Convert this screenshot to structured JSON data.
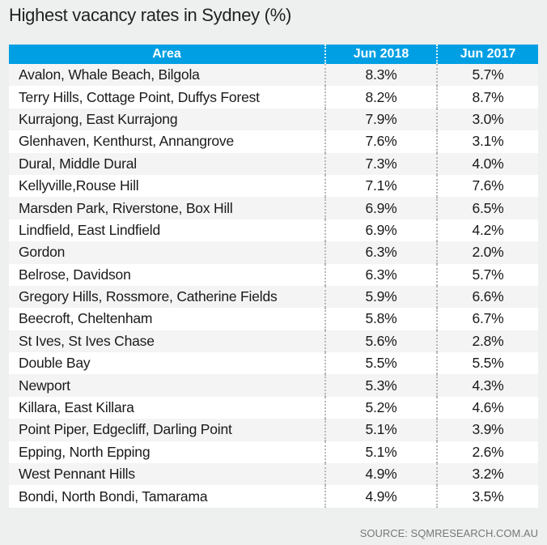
{
  "chart_data": {
    "type": "table",
    "title": "Highest vacancy rates in Sydney (%)",
    "columns": [
      "Area",
      "Jun 2018",
      "Jun 2017"
    ],
    "rows": [
      [
        "Avalon, Whale Beach, Bilgola",
        "8.3%",
        "5.7%"
      ],
      [
        "Terry Hills, Cottage Point, Duffys Forest",
        "8.2%",
        "8.7%"
      ],
      [
        "Kurrajong, East Kurrajong",
        "7.9%",
        "3.0%"
      ],
      [
        "Glenhaven, Kenthurst, Annangrove",
        "7.6%",
        "3.1%"
      ],
      [
        "Dural, Middle Dural",
        "7.3%",
        "4.0%"
      ],
      [
        "Kellyville,Rouse Hill",
        "7.1%",
        "7.6%"
      ],
      [
        "Marsden Park, Riverstone, Box Hill",
        "6.9%",
        "6.5%"
      ],
      [
        "Lindfield, East Lindfield",
        "6.9%",
        "4.2%"
      ],
      [
        "Gordon",
        "6.3%",
        "2.0%"
      ],
      [
        "Belrose, Davidson",
        "6.3%",
        "5.7%"
      ],
      [
        "Gregory Hills, Rossmore, Catherine Fields",
        "5.9%",
        "6.6%"
      ],
      [
        "Beecroft, Cheltenham",
        "5.8%",
        "6.7%"
      ],
      [
        "St Ives, St Ives Chase",
        "5.6%",
        "2.8%"
      ],
      [
        "Double Bay",
        "5.5%",
        "5.5%"
      ],
      [
        "Newport",
        "5.3%",
        "4.3%"
      ],
      [
        "Killara, East Killara",
        "5.2%",
        "4.6%"
      ],
      [
        "Point Piper, Edgecliff, Darling Point",
        "5.1%",
        "3.9%"
      ],
      [
        "Epping, North Epping",
        "5.1%",
        "2.6%"
      ],
      [
        "West Pennant Hills",
        "4.9%",
        "3.2%"
      ],
      [
        "Bondi, North Bondi, Tamarama",
        "4.9%",
        "3.5%"
      ]
    ],
    "source": "SOURCE: SQMRESEARCH.COM.AU",
    "header_color": "#009fe3"
  }
}
